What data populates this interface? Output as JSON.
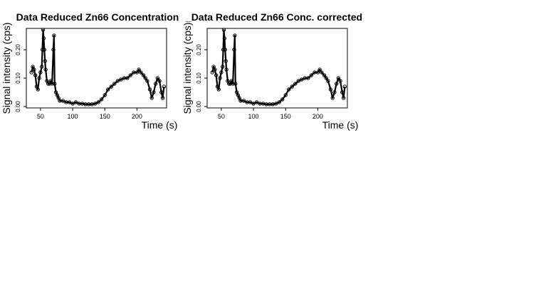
{
  "chart_data": [
    {
      "type": "scatter",
      "title": "Data Reduced Zn66 Concentration",
      "xlabel": "Time (s)",
      "ylabel": "Signal intensity (cps)",
      "xlim": [
        28,
        246
      ],
      "ylim": [
        -0.005,
        0.275
      ],
      "xticks": [
        50,
        100,
        150,
        200
      ],
      "yticks": [
        0.0,
        0.1,
        0.2
      ],
      "ytick_labels": [
        "0.00",
        "0.10",
        "0.20"
      ],
      "grid": false,
      "legend": "none",
      "marker": "open-circle",
      "color": "#000000",
      "series": [
        {
          "x": [
            36,
            38,
            40,
            42,
            44,
            46,
            48,
            50,
            52,
            53,
            54,
            55,
            56,
            57,
            58,
            60,
            62,
            64,
            66,
            68,
            70,
            71,
            72,
            74,
            76,
            78,
            80,
            85,
            90,
            95,
            100,
            105,
            110,
            115,
            120,
            125,
            130,
            135,
            140,
            145,
            150,
            155,
            160,
            165,
            170,
            175,
            180,
            185,
            190,
            195,
            200,
            203,
            206,
            210,
            213,
            216,
            220,
            223,
            226,
            229,
            232,
            235,
            238,
            240,
            242
          ],
          "y": [
            0.12,
            0.14,
            0.13,
            0.11,
            0.07,
            0.06,
            0.1,
            0.12,
            0.14,
            0.2,
            0.27,
            0.24,
            0.2,
            0.16,
            0.13,
            0.09,
            0.08,
            0.08,
            0.09,
            0.08,
            0.2,
            0.25,
            0.08,
            0.05,
            0.04,
            0.03,
            0.02,
            0.02,
            0.015,
            0.015,
            0.01,
            0.015,
            0.01,
            0.01,
            0.008,
            0.008,
            0.008,
            0.01,
            0.015,
            0.025,
            0.04,
            0.06,
            0.07,
            0.08,
            0.09,
            0.095,
            0.1,
            0.1,
            0.11,
            0.12,
            0.12,
            0.13,
            0.12,
            0.11,
            0.1,
            0.09,
            0.06,
            0.03,
            0.05,
            0.08,
            0.1,
            0.09,
            0.05,
            0.03,
            0.07
          ]
        }
      ]
    },
    {
      "type": "scatter",
      "title": "_Data Reduced Zn66 Conc. corrected",
      "xlabel": "Time (s)",
      "ylabel": "Signal intensity (cps)",
      "xlim": [
        28,
        246
      ],
      "ylim": [
        -0.005,
        0.275
      ],
      "xticks": [
        50,
        100,
        150,
        200
      ],
      "yticks": [
        0.0,
        0.1,
        0.2
      ],
      "ytick_labels": [
        "0.00",
        "0.10",
        "0.20"
      ],
      "grid": false,
      "legend": "none",
      "marker": "open-circle",
      "color": "#000000",
      "series": [
        {
          "x": [
            36,
            38,
            40,
            42,
            44,
            46,
            48,
            50,
            52,
            53,
            54,
            55,
            56,
            57,
            58,
            60,
            62,
            64,
            66,
            68,
            70,
            71,
            72,
            74,
            76,
            78,
            80,
            85,
            90,
            95,
            100,
            105,
            110,
            115,
            120,
            125,
            130,
            135,
            140,
            145,
            150,
            155,
            160,
            165,
            170,
            175,
            180,
            185,
            190,
            195,
            200,
            203,
            206,
            210,
            213,
            216,
            220,
            223,
            226,
            229,
            232,
            235,
            238,
            240,
            242
          ],
          "y": [
            0.12,
            0.14,
            0.13,
            0.11,
            0.07,
            0.06,
            0.1,
            0.12,
            0.14,
            0.2,
            0.27,
            0.24,
            0.2,
            0.16,
            0.13,
            0.09,
            0.08,
            0.08,
            0.09,
            0.08,
            0.2,
            0.25,
            0.08,
            0.05,
            0.04,
            0.03,
            0.02,
            0.02,
            0.015,
            0.015,
            0.01,
            0.015,
            0.01,
            0.01,
            0.008,
            0.008,
            0.008,
            0.01,
            0.015,
            0.025,
            0.04,
            0.06,
            0.07,
            0.08,
            0.09,
            0.095,
            0.1,
            0.1,
            0.11,
            0.12,
            0.12,
            0.13,
            0.12,
            0.11,
            0.1,
            0.09,
            0.06,
            0.03,
            0.05,
            0.08,
            0.1,
            0.09,
            0.05,
            0.03,
            0.07
          ]
        }
      ]
    }
  ]
}
